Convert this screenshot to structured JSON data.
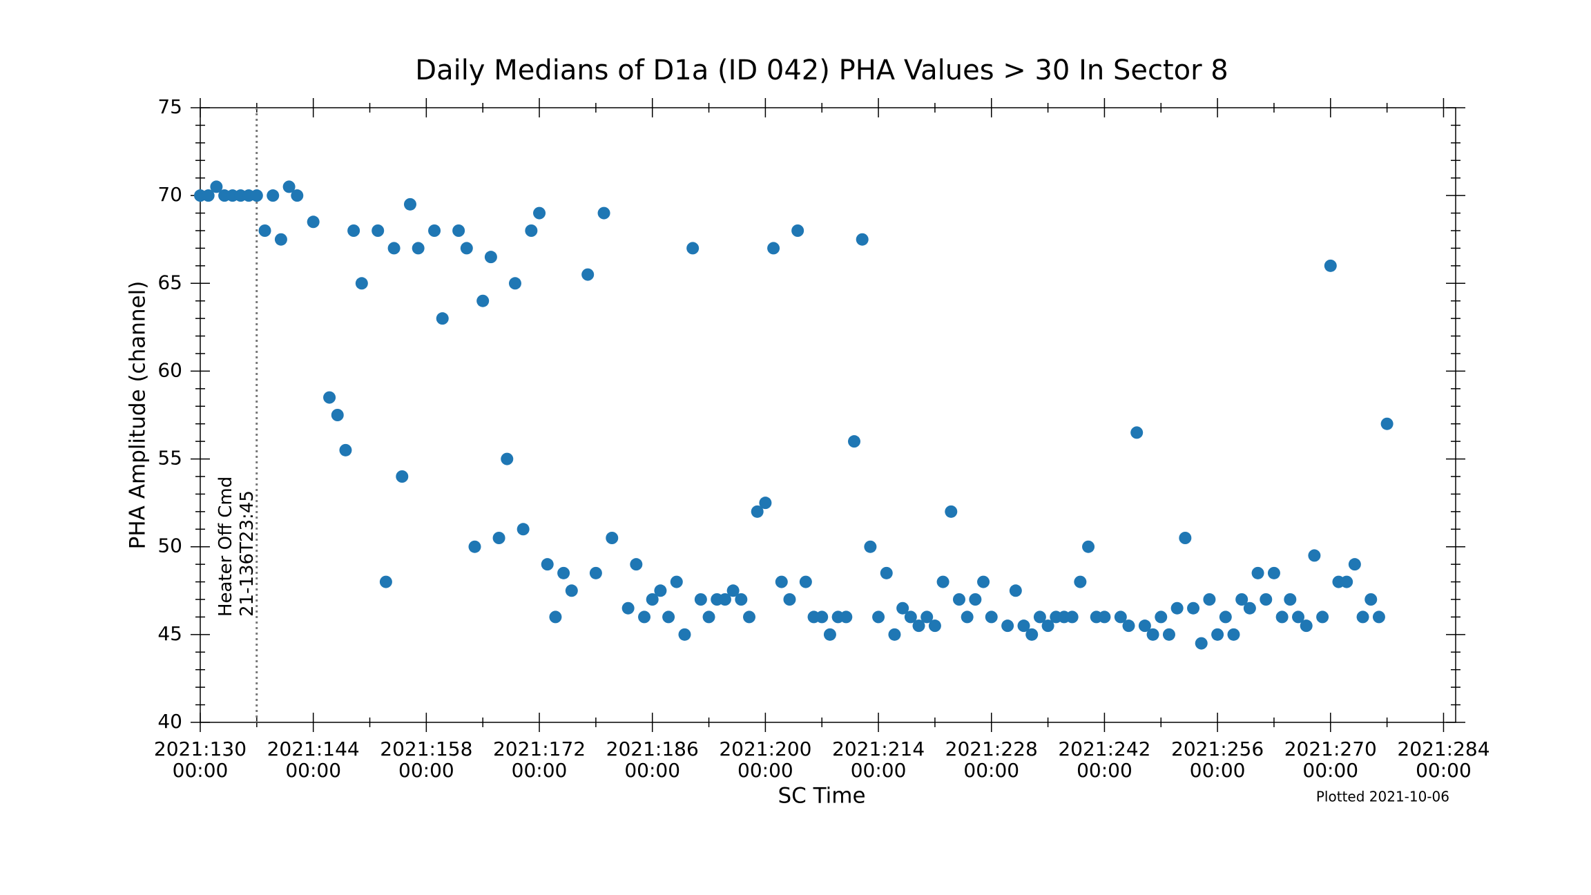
{
  "chart_data": {
    "type": "scatter",
    "title": "Daily Medians of D1a (ID 042) PHA Values > 30 In Sector 8",
    "xlabel": "SC Time",
    "ylabel": "PHA Amplitude (channel)",
    "footnote": "Plotted 2021-10-06",
    "color": "#1f77b4",
    "xlim": [
      130,
      285.5
    ],
    "ylim": [
      40,
      75
    ],
    "xticks": [
      {
        "value": 130,
        "label": [
          "2021:130",
          "00:00"
        ]
      },
      {
        "value": 144,
        "label": [
          "2021:144",
          "00:00"
        ]
      },
      {
        "value": 158,
        "label": [
          "2021:158",
          "00:00"
        ]
      },
      {
        "value": 172,
        "label": [
          "2021:172",
          "00:00"
        ]
      },
      {
        "value": 186,
        "label": [
          "2021:186",
          "00:00"
        ]
      },
      {
        "value": 200,
        "label": [
          "2021:200",
          "00:00"
        ]
      },
      {
        "value": 214,
        "label": [
          "2021:214",
          "00:00"
        ]
      },
      {
        "value": 228,
        "label": [
          "2021:228",
          "00:00"
        ]
      },
      {
        "value": 242,
        "label": [
          "2021:242",
          "00:00"
        ]
      },
      {
        "value": 256,
        "label": [
          "2021:256",
          "00:00"
        ]
      },
      {
        "value": 270,
        "label": [
          "2021:270",
          "00:00"
        ]
      },
      {
        "value": 284,
        "label": [
          "2021:284",
          "00:00"
        ]
      }
    ],
    "xminorticks": [
      137,
      151,
      165,
      179,
      193,
      207,
      221,
      235,
      249,
      263,
      277
    ],
    "yticks": [
      40,
      45,
      50,
      55,
      60,
      65,
      70,
      75
    ],
    "yminorticks": [
      41,
      42,
      43,
      44,
      46,
      47,
      48,
      49,
      51,
      52,
      53,
      54,
      56,
      57,
      58,
      59,
      61,
      62,
      63,
      64,
      66,
      67,
      68,
      69,
      71,
      72,
      73,
      74
    ],
    "annotations": [
      {
        "x": 136.99,
        "lines": [
          "Heater Off Cmd",
          "21-136T23:45"
        ]
      }
    ],
    "x": [
      130,
      131,
      132,
      133,
      134,
      135,
      136,
      137,
      138,
      139,
      140,
      141,
      142,
      144,
      146,
      147,
      148,
      149,
      150,
      152,
      153,
      154,
      155,
      156,
      157,
      159,
      160,
      162,
      163,
      164,
      165,
      166,
      167,
      168,
      169,
      170,
      171,
      172,
      173,
      174,
      175,
      176,
      178,
      179,
      180,
      181,
      183,
      184,
      185,
      186,
      187,
      188,
      189,
      190,
      191,
      192,
      193,
      194,
      195,
      196,
      197,
      198,
      199,
      200,
      201,
      202,
      203,
      204,
      205,
      206,
      207,
      208,
      209,
      210,
      211,
      212,
      213,
      214,
      215,
      216,
      217,
      218,
      219,
      220,
      221,
      222,
      223,
      224,
      225,
      226,
      227,
      228,
      230,
      231,
      232,
      233,
      234,
      235,
      236,
      237,
      238,
      239,
      240,
      241,
      242,
      244,
      245,
      246,
      247,
      248,
      249,
      250,
      251,
      252,
      253,
      254,
      255,
      256,
      257,
      258,
      259,
      260,
      261,
      262,
      263,
      264,
      265,
      266,
      267,
      268,
      269,
      270,
      271,
      272,
      273,
      274,
      275,
      276,
      277
    ],
    "values": [
      70,
      70,
      70.5,
      70,
      70,
      70,
      70,
      70,
      68,
      70,
      67.5,
      70.5,
      70,
      68.5,
      58.5,
      57.5,
      55.5,
      68,
      65,
      68,
      48,
      67,
      54,
      69.5,
      67,
      68,
      63,
      68,
      67,
      50,
      64,
      66.5,
      50.5,
      55,
      65,
      51,
      68,
      69,
      49,
      46,
      48.5,
      47.5,
      65.5,
      48.5,
      69,
      50.5,
      46.5,
      49,
      46,
      47,
      47.5,
      46,
      48,
      45,
      67,
      47,
      46,
      47,
      47,
      47.5,
      47,
      46,
      52,
      52.5,
      67,
      48,
      47,
      68,
      48,
      46,
      46,
      45,
      46,
      46,
      56,
      67.5,
      50,
      46,
      48.5,
      45,
      46.5,
      46,
      45.5,
      46,
      45.5,
      48,
      52,
      47,
      46,
      47,
      48,
      46,
      45.5,
      47.5,
      45.5,
      45,
      46,
      45.5,
      46,
      46,
      46,
      48,
      50,
      46,
      46,
      46,
      45.5,
      56.5,
      45.5,
      45,
      46,
      45,
      46.5,
      50.5,
      46.5,
      44.5,
      47,
      45,
      46,
      45,
      47,
      46.5,
      48.5,
      47,
      48.5,
      46,
      47,
      46,
      45.5,
      49.5,
      46,
      66,
      48,
      48,
      49,
      46,
      47,
      46,
      57
    ]
  }
}
